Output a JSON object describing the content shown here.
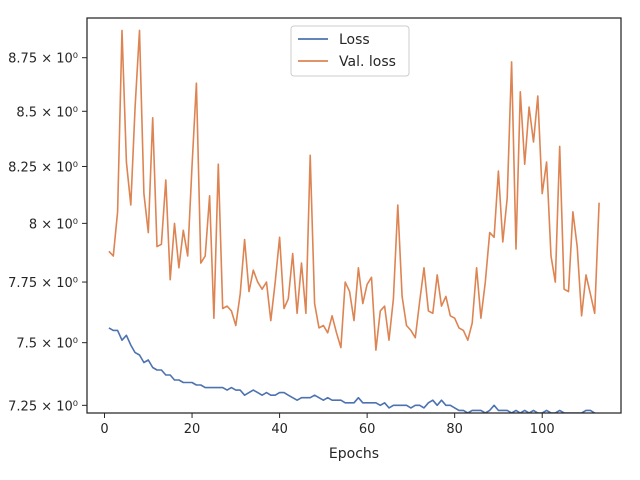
{
  "chart_data": {
    "type": "line",
    "title": "",
    "xlabel": "Epochs",
    "ylabel": "",
    "yscale": "log",
    "xlim": [
      -4,
      118
    ],
    "ylim": [
      7.22,
      8.94
    ],
    "grid": false,
    "legend": "upper center",
    "x_ticks": [
      0,
      20,
      40,
      60,
      80,
      100
    ],
    "y_ticks": [
      {
        "value": 7.25,
        "label": "7.25 × 10⁰"
      },
      {
        "value": 7.5,
        "label": "7.5 × 10⁰"
      },
      {
        "value": 7.75,
        "label": "7.75 × 10⁰"
      },
      {
        "value": 8.0,
        "label": "8 × 10⁰"
      },
      {
        "value": 8.25,
        "label": "8.25 × 10⁰"
      },
      {
        "value": 8.5,
        "label": "8.5 × 10⁰"
      },
      {
        "value": 8.75,
        "label": "8.75 × 10⁰"
      }
    ],
    "series": [
      {
        "name": "Loss",
        "color": "#4c72b0",
        "x_start": 1,
        "values": [
          7.56,
          7.55,
          7.55,
          7.51,
          7.53,
          7.49,
          7.46,
          7.45,
          7.42,
          7.43,
          7.4,
          7.39,
          7.39,
          7.37,
          7.37,
          7.35,
          7.35,
          7.34,
          7.34,
          7.34,
          7.33,
          7.33,
          7.32,
          7.32,
          7.32,
          7.32,
          7.32,
          7.31,
          7.32,
          7.31,
          7.31,
          7.29,
          7.3,
          7.31,
          7.3,
          7.29,
          7.3,
          7.29,
          7.29,
          7.3,
          7.3,
          7.29,
          7.28,
          7.27,
          7.28,
          7.28,
          7.28,
          7.29,
          7.28,
          7.27,
          7.28,
          7.27,
          7.27,
          7.27,
          7.26,
          7.26,
          7.26,
          7.28,
          7.26,
          7.26,
          7.26,
          7.26,
          7.25,
          7.26,
          7.24,
          7.25,
          7.25,
          7.25,
          7.25,
          7.24,
          7.25,
          7.25,
          7.24,
          7.26,
          7.27,
          7.25,
          7.27,
          7.25,
          7.25,
          7.24,
          7.23,
          7.23,
          7.22,
          7.23,
          7.23,
          7.23,
          7.22,
          7.23,
          7.25,
          7.23,
          7.23,
          7.23,
          7.22,
          7.23,
          7.22,
          7.23,
          7.22,
          7.23,
          7.22,
          7.22,
          7.23,
          7.22,
          7.22,
          7.23,
          7.22,
          7.22,
          7.22,
          7.22,
          7.22,
          7.23,
          7.23,
          7.22,
          7.21
        ]
      },
      {
        "name": "Val. loss",
        "color": "#dd8452",
        "x_start": 1,
        "values": [
          7.88,
          7.86,
          8.05,
          8.88,
          8.27,
          8.08,
          8.52,
          8.88,
          8.13,
          7.96,
          8.47,
          7.9,
          7.91,
          8.19,
          7.76,
          8.0,
          7.81,
          7.97,
          7.86,
          8.25,
          8.63,
          7.83,
          7.86,
          8.12,
          7.6,
          8.26,
          7.64,
          7.65,
          7.63,
          7.57,
          7.7,
          7.93,
          7.71,
          7.8,
          7.75,
          7.72,
          7.75,
          7.59,
          7.75,
          7.94,
          7.64,
          7.68,
          7.87,
          7.62,
          7.83,
          7.62,
          8.3,
          7.66,
          7.56,
          7.57,
          7.54,
          7.61,
          7.54,
          7.48,
          7.75,
          7.71,
          7.59,
          7.81,
          7.66,
          7.74,
          7.77,
          7.47,
          7.63,
          7.65,
          7.51,
          7.68,
          8.08,
          7.69,
          7.57,
          7.55,
          7.52,
          7.67,
          7.81,
          7.63,
          7.62,
          7.78,
          7.65,
          7.69,
          7.61,
          7.6,
          7.56,
          7.55,
          7.51,
          7.58,
          7.81,
          7.6,
          7.75,
          7.96,
          7.94,
          8.23,
          7.92,
          8.11,
          8.73,
          7.89,
          8.59,
          8.26,
          8.52,
          8.36,
          8.57,
          8.13,
          8.27,
          7.86,
          7.75,
          8.34,
          7.72,
          7.71,
          8.05,
          7.9,
          7.61,
          7.78,
          7.7,
          7.62,
          8.09
        ]
      }
    ]
  }
}
